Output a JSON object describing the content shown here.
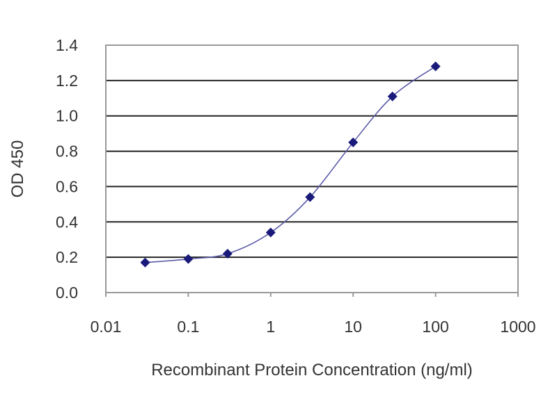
{
  "chart_data": {
    "type": "line",
    "title": "",
    "xlabel": "Recombinant Protein Concentration (ng/ml)",
    "ylabel": "OD 450",
    "x_scale": "log",
    "xlim": [
      0.01,
      1000
    ],
    "ylim": [
      0,
      1.4
    ],
    "x_ticks": [
      "0.01",
      "0.1",
      "1",
      "10",
      "100",
      "1000"
    ],
    "y_ticks": [
      "0.0",
      "0.2",
      "0.4",
      "0.6",
      "0.8",
      "1.0",
      "1.2",
      "1.4"
    ],
    "grid": "horizontal",
    "marker": "diamond",
    "series_color": "#1a1a7a",
    "line_color": "#5a5aa8",
    "points": [
      {
        "x": 0.03,
        "y": 0.17
      },
      {
        "x": 0.1,
        "y": 0.19
      },
      {
        "x": 0.3,
        "y": 0.22
      },
      {
        "x": 1,
        "y": 0.34
      },
      {
        "x": 3,
        "y": 0.54
      },
      {
        "x": 10,
        "y": 0.85
      },
      {
        "x": 30,
        "y": 1.11
      },
      {
        "x": 100,
        "y": 1.28
      }
    ]
  }
}
